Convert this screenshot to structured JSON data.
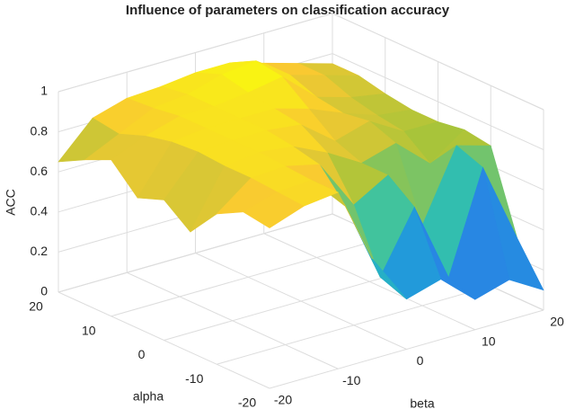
{
  "chart_data": {
    "type": "surface",
    "title": "Influence of parameters on classification accuracy",
    "xlabel": "alpha",
    "ylabel": "beta",
    "zlabel": "ACC",
    "alpha": [
      -20,
      -15,
      -10,
      -5,
      0,
      5,
      10,
      15,
      20
    ],
    "beta": [
      -20,
      -15,
      -10,
      -5,
      0,
      5,
      10,
      15,
      20
    ],
    "values": [
      [
        0.8,
        0.86,
        0.88,
        0.5,
        0.25,
        0.3,
        0.15,
        0.2,
        0.1
      ],
      [
        0.82,
        0.87,
        0.88,
        0.7,
        0.3,
        0.6,
        0.2,
        0.7,
        0.3
      ],
      [
        0.75,
        0.88,
        0.89,
        0.85,
        0.6,
        0.7,
        0.4,
        0.75,
        0.7
      ],
      [
        0.6,
        0.88,
        0.9,
        0.88,
        0.8,
        0.7,
        0.75,
        0.6,
        0.72
      ],
      [
        0.7,
        0.89,
        0.9,
        0.9,
        0.88,
        0.75,
        0.8,
        0.7,
        0.7
      ],
      [
        0.65,
        0.88,
        0.9,
        0.9,
        0.9,
        0.85,
        0.78,
        0.72,
        0.7
      ],
      [
        0.78,
        0.85,
        0.9,
        0.9,
        0.92,
        0.95,
        0.8,
        0.75,
        0.72
      ],
      [
        0.72,
        0.8,
        0.88,
        0.9,
        0.95,
        0.97,
        0.85,
        0.8,
        0.75
      ],
      [
        0.65,
        0.82,
        0.87,
        0.88,
        0.9,
        0.9,
        0.85,
        0.8,
        0.75
      ]
    ],
    "xlim": [
      -20,
      20
    ],
    "xticks": [
      -20,
      -10,
      0,
      10,
      20
    ],
    "ylim": [
      -20,
      20
    ],
    "yticks": [
      -20,
      -10,
      0,
      10,
      20
    ],
    "zlim": [
      0,
      1
    ],
    "zticks": [
      0,
      0.2,
      0.4,
      0.6,
      0.8,
      1
    ],
    "colormap": [
      "#3e26a8",
      "#2f6cf0",
      "#1fa5d5",
      "#35c3a8",
      "#a8c43a",
      "#f9c931",
      "#f9fb0e"
    ],
    "grid": true
  }
}
